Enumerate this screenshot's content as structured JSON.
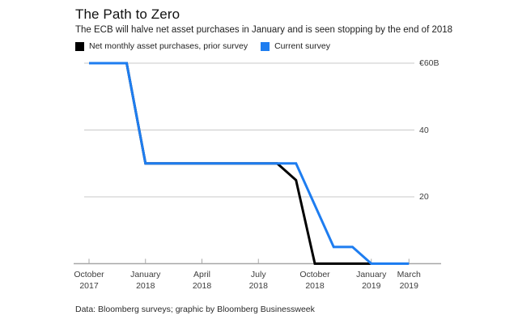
{
  "header": {
    "title": "The Path to Zero",
    "subtitle": "The ECB will halve net asset purchases in January and is seen stopping by the end of 2018"
  },
  "legend": {
    "items": [
      {
        "label": "Net monthly asset purchases, prior survey",
        "color": "#000000"
      },
      {
        "label": "Current survey",
        "color": "#1e7df0"
      }
    ]
  },
  "footer": {
    "source": "Data: Bloomberg surveys; graphic by Bloomberg Businessweek"
  },
  "chart_data": {
    "type": "line",
    "title": "The Path to Zero",
    "subtitle": "The ECB will halve net asset purchases in January and is seen stopping by the end of 2018",
    "unit": "billions of euros per month",
    "ylim": [
      0,
      60
    ],
    "grid": "horizontal",
    "legend_position": "top-left",
    "x_months": [
      "Oct 2017",
      "Nov 2017",
      "Dec 2017",
      "Jan 2018",
      "Feb 2018",
      "Mar 2018",
      "Apr 2018",
      "May 2018",
      "Jun 2018",
      "Jul 2018",
      "Aug 2018",
      "Sep 2018",
      "Oct 2018",
      "Nov 2018",
      "Dec 2018",
      "Jan 2019",
      "Feb 2019",
      "Mar 2019"
    ],
    "x_ticks": [
      {
        "line1": "October",
        "line2": "2017",
        "month_index": 0
      },
      {
        "line1": "January",
        "line2": "2018",
        "month_index": 3
      },
      {
        "line1": "April",
        "line2": "2018",
        "month_index": 6
      },
      {
        "line1": "July",
        "line2": "2018",
        "month_index": 9
      },
      {
        "line1": "October",
        "line2": "2018",
        "month_index": 12
      },
      {
        "line1": "January",
        "line2": "2019",
        "month_index": 15
      },
      {
        "line1": "March",
        "line2": "2019",
        "month_index": 17
      }
    ],
    "y_ticks": [
      {
        "label": "€60B",
        "value": 60
      },
      {
        "label": "40",
        "value": 40
      },
      {
        "label": "20",
        "value": 20
      }
    ],
    "series": [
      {
        "name": "Net monthly asset purchases, prior survey",
        "color": "#000000",
        "points": [
          [
            "Oct 2017",
            60
          ],
          [
            "Dec 2017",
            60
          ],
          [
            "Jan 2018",
            30
          ],
          [
            "Aug 2018",
            30
          ],
          [
            "Sep 2018",
            25
          ],
          [
            "Oct 2018",
            0
          ],
          [
            "Jan 2019",
            0
          ]
        ]
      },
      {
        "name": "Current survey",
        "color": "#1e7df0",
        "points": [
          [
            "Oct 2017",
            60
          ],
          [
            "Dec 2017",
            60
          ],
          [
            "Jan 2018",
            30
          ],
          [
            "Sep 2018",
            30
          ],
          [
            "Nov 2018",
            5
          ],
          [
            "Dec 2018",
            5
          ],
          [
            "Jan 2019",
            0
          ],
          [
            "Mar 2019",
            0
          ]
        ]
      }
    ],
    "colors": {
      "grid_line": "#c9c9c9",
      "axis_line": "#a8a8a8",
      "tick_label": "#3d3d3d"
    }
  }
}
